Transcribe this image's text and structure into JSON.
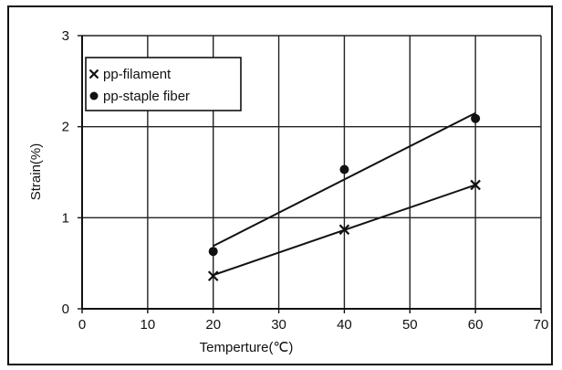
{
  "chart_data": {
    "type": "scatter",
    "xlabel": "Temperture(℃)",
    "ylabel": "Strain(%)",
    "xlim": [
      0,
      70
    ],
    "ylim": [
      0,
      3
    ],
    "xticks": [
      0,
      10,
      20,
      30,
      40,
      50,
      60,
      70
    ],
    "yticks": [
      0,
      1,
      2,
      3
    ],
    "grid": true,
    "legend_position": "top-left",
    "series": [
      {
        "name": "pp-filament",
        "marker": "x",
        "color": "#111111",
        "points": [
          {
            "x": 20,
            "y": 0.36
          },
          {
            "x": 40,
            "y": 0.87
          },
          {
            "x": 60,
            "y": 1.36
          }
        ],
        "trendline": [
          {
            "x": 20,
            "y": 0.37
          },
          {
            "x": 60,
            "y": 1.36
          }
        ]
      },
      {
        "name": "pp-staple fiber",
        "marker": "circle",
        "color": "#111111",
        "points": [
          {
            "x": 20,
            "y": 0.63
          },
          {
            "x": 40,
            "y": 1.53
          },
          {
            "x": 60,
            "y": 2.09
          }
        ],
        "trendline": [
          {
            "x": 20,
            "y": 0.69
          },
          {
            "x": 60,
            "y": 2.15
          }
        ]
      }
    ]
  }
}
